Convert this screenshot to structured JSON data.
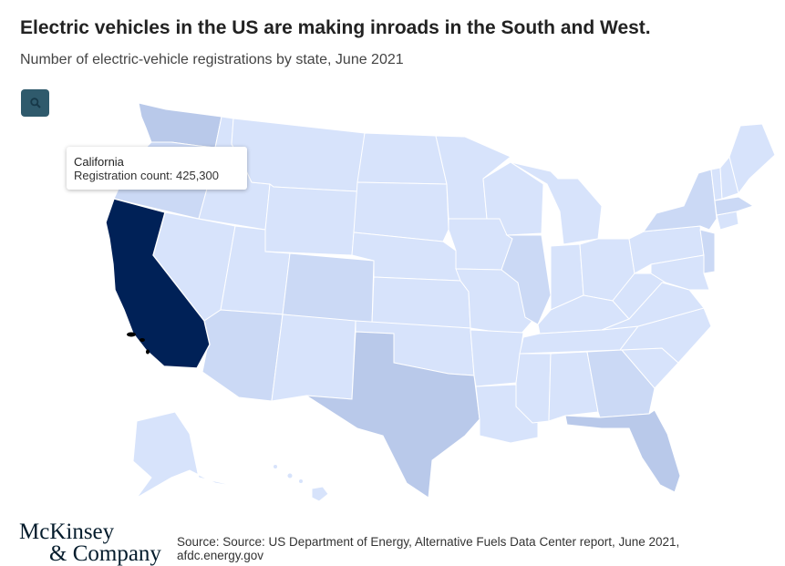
{
  "header": {
    "title": "Electric vehicles in the US are making inroads in the South and West.",
    "subtitle": "Number of electric-vehicle registrations by state, June 2021"
  },
  "controls": {
    "zoom_icon": "magnifier-icon"
  },
  "tooltip": {
    "state": "California",
    "value_label": "Registration count: 425,300"
  },
  "chart_data": {
    "type": "choropleth",
    "highlighted": {
      "state": "California",
      "registration_count": 425300
    },
    "legend": "none"
  },
  "colors": {
    "highlight": "#002157",
    "tier_high": "#b9c9ea",
    "tier_mid": "#cbd9f5",
    "tier_low": "#d7e3fb",
    "zoom_button": "#2f5a6c",
    "logo": "#051c2c"
  },
  "footer": {
    "logo_line1": "McKinsey",
    "logo_line2": "& Company",
    "source": "Source: Source: US Department of Energy, Alternative Fuels Data Center report, June 2021, afdc.energy.gov"
  }
}
